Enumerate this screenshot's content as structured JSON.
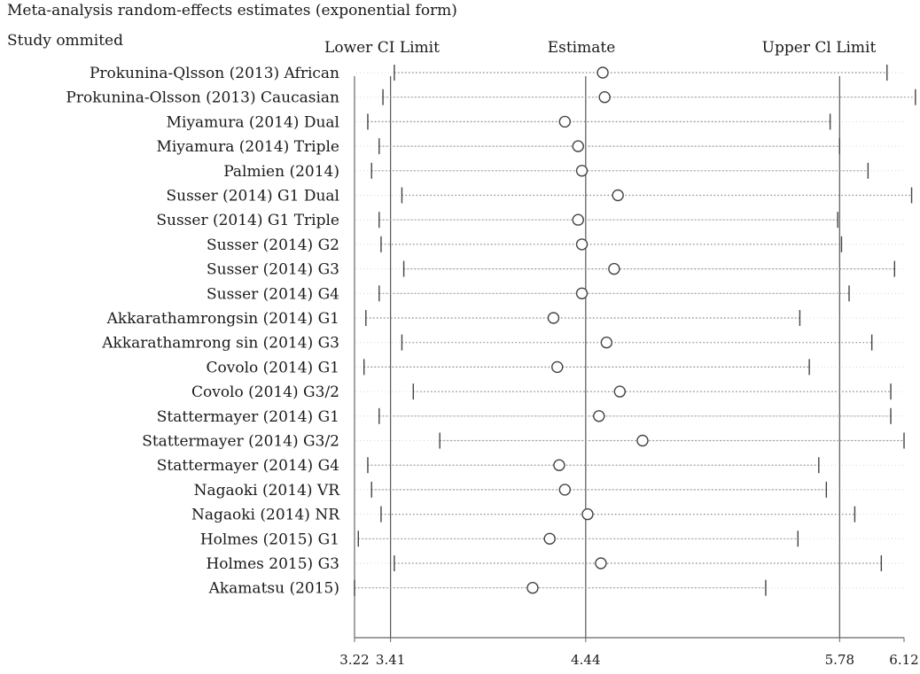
{
  "header": {
    "title": "Meta-analysis random-effects estimates (exponential form)",
    "subtitle": "Study ommited",
    "col_lower": "Lower CI Limit",
    "col_estimate": "Estimate",
    "col_upper": "Upper Cl Limit"
  },
  "chart_data": {
    "type": "forest",
    "title": "Meta-analysis random-effects estimates (exponential form)",
    "ylabel": "Study ommited",
    "xlim": [
      3.22,
      6.12
    ],
    "reference_lines": [
      3.41,
      4.44,
      5.78
    ],
    "tick_labels": [
      "3.22",
      "3.41",
      "4.44",
      "5.78",
      "6.12"
    ],
    "tick_values": [
      3.22,
      3.41,
      4.44,
      5.78,
      6.12
    ],
    "grid": false,
    "studies": [
      {
        "label": "Prokunina-Qlsson (2013) African",
        "estimate": 4.53,
        "lower": 3.43,
        "upper": 6.03
      },
      {
        "label": "Prokunina-Olsson (2013) Caucasian",
        "estimate": 4.54,
        "lower": 3.37,
        "upper": 6.18
      },
      {
        "label": "Miyamura (2014) Dual",
        "estimate": 4.33,
        "lower": 3.29,
        "upper": 5.73
      },
      {
        "label": "Miyamura (2014) Triple",
        "estimate": 4.4,
        "lower": 3.35,
        "upper": 5.78
      },
      {
        "label": "Palmien (2014)",
        "estimate": 4.42,
        "lower": 3.31,
        "upper": 5.93
      },
      {
        "label": "Susser (2014) G1 Dual",
        "estimate": 4.61,
        "lower": 3.47,
        "upper": 6.16
      },
      {
        "label": "Susser (2014) G1 Triple",
        "estimate": 4.4,
        "lower": 3.35,
        "upper": 5.77
      },
      {
        "label": "Susser (2014) G2",
        "estimate": 4.42,
        "lower": 3.36,
        "upper": 5.79
      },
      {
        "label": "Susser (2014) G3",
        "estimate": 4.59,
        "lower": 3.48,
        "upper": 6.07
      },
      {
        "label": "Susser (2014) G4",
        "estimate": 4.42,
        "lower": 3.35,
        "upper": 5.83
      },
      {
        "label": "Akkarathamrongsin (2014) G1",
        "estimate": 4.27,
        "lower": 3.28,
        "upper": 5.57
      },
      {
        "label": "Akkarathamrong sin (2014) G3",
        "estimate": 4.55,
        "lower": 3.47,
        "upper": 5.95
      },
      {
        "label": "Covolo (2014) G1",
        "estimate": 4.29,
        "lower": 3.27,
        "upper": 5.62
      },
      {
        "label": "Covolo (2014) G3/2",
        "estimate": 4.62,
        "lower": 3.53,
        "upper": 6.05
      },
      {
        "label": "Stattermayer (2014) G1",
        "estimate": 4.51,
        "lower": 3.35,
        "upper": 6.05
      },
      {
        "label": "Stattermayer (2014) G3/2",
        "estimate": 4.74,
        "lower": 3.67,
        "upper": 6.12
      },
      {
        "label": "Stattermayer (2014) G4",
        "estimate": 4.3,
        "lower": 3.29,
        "upper": 5.67
      },
      {
        "label": "Nagaoki (2014) VR",
        "estimate": 4.33,
        "lower": 3.31,
        "upper": 5.71
      },
      {
        "label": "Nagaoki (2014) NR",
        "estimate": 4.45,
        "lower": 3.36,
        "upper": 5.86
      },
      {
        "label": "Holmes (2015) G1",
        "estimate": 4.25,
        "lower": 3.24,
        "upper": 5.56
      },
      {
        "label": "Holmes 2015) G3",
        "estimate": 4.52,
        "lower": 3.43,
        "upper": 6.0
      },
      {
        "label": "Akamatsu (2015)",
        "estimate": 4.16,
        "lower": 3.22,
        "upper": 5.39
      }
    ]
  }
}
